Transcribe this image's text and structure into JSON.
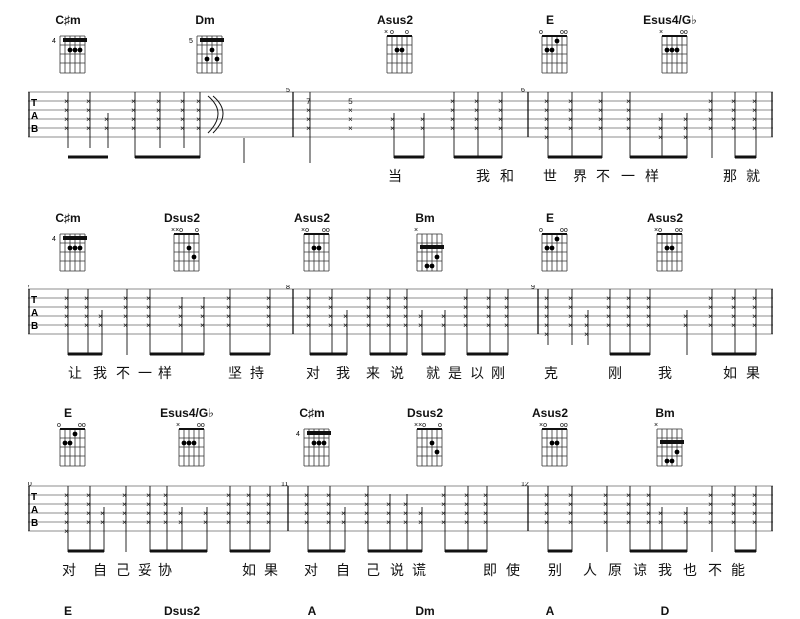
{
  "tab_label": [
    "T",
    "A",
    "B"
  ],
  "rows": [
    {
      "chords": [
        {
          "name": "C♯m",
          "fret": "4",
          "icon": "barre-chord"
        },
        {
          "name": "Dm",
          "fret": "5",
          "icon": "barre-chord"
        },
        {
          "name": "Asus2",
          "fret": "",
          "icon": "open-chord"
        },
        {
          "name": "E",
          "fret": "",
          "icon": "open-chord"
        },
        {
          "name": "Esus4/G♭",
          "fret": "",
          "icon": "open-chord"
        }
      ],
      "measure_numbers": [
        "5",
        "6"
      ],
      "fret_numbers": [
        "7",
        "5"
      ],
      "lyrics": [
        "当",
        "我",
        "和",
        "世",
        "界",
        "不",
        "一",
        "样",
        "那",
        "就"
      ]
    },
    {
      "chords": [
        {
          "name": "C♯m",
          "fret": "4",
          "icon": "barre-chord"
        },
        {
          "name": "Dsus2",
          "fret": "",
          "icon": "open-chord"
        },
        {
          "name": "Asus2",
          "fret": "",
          "icon": "open-chord"
        },
        {
          "name": "Bm",
          "fret": "",
          "icon": "barre-chord"
        },
        {
          "name": "E",
          "fret": "",
          "icon": "open-chord"
        },
        {
          "name": "Asus2",
          "fret": "",
          "icon": "open-chord"
        }
      ],
      "measure_numbers": [
        "7",
        "8",
        "9"
      ],
      "lyrics": [
        "让",
        "我",
        "不",
        "一",
        "样",
        "坚",
        "持",
        "对",
        "我",
        "来",
        "说",
        "就",
        "是",
        "以",
        "刚",
        "克",
        "刚",
        "我",
        "如",
        "果"
      ]
    },
    {
      "chords": [
        {
          "name": "E",
          "fret": "",
          "icon": "open-chord"
        },
        {
          "name": "Esus4/G♭",
          "fret": "",
          "icon": "open-chord"
        },
        {
          "name": "C♯m",
          "fret": "4",
          "icon": "barre-chord"
        },
        {
          "name": "Dsus2",
          "fret": "",
          "icon": "open-chord"
        },
        {
          "name": "Asus2",
          "fret": "",
          "icon": "open-chord"
        },
        {
          "name": "Bm",
          "fret": "",
          "icon": "barre-chord"
        }
      ],
      "measure_numbers": [
        "10",
        "11",
        "12"
      ],
      "lyrics": [
        "对",
        "自",
        "己",
        "妥",
        "协",
        "如",
        "果",
        "对",
        "自",
        "己",
        "说",
        "谎",
        "即",
        "使",
        "别",
        "人",
        "原",
        "谅",
        "我",
        "也",
        "不",
        "能"
      ]
    },
    {
      "chords": [
        {
          "name": "E"
        },
        {
          "name": "Dsus2"
        },
        {
          "name": "A"
        },
        {
          "name": "Dm"
        },
        {
          "name": "A"
        },
        {
          "name": "D"
        }
      ]
    }
  ]
}
